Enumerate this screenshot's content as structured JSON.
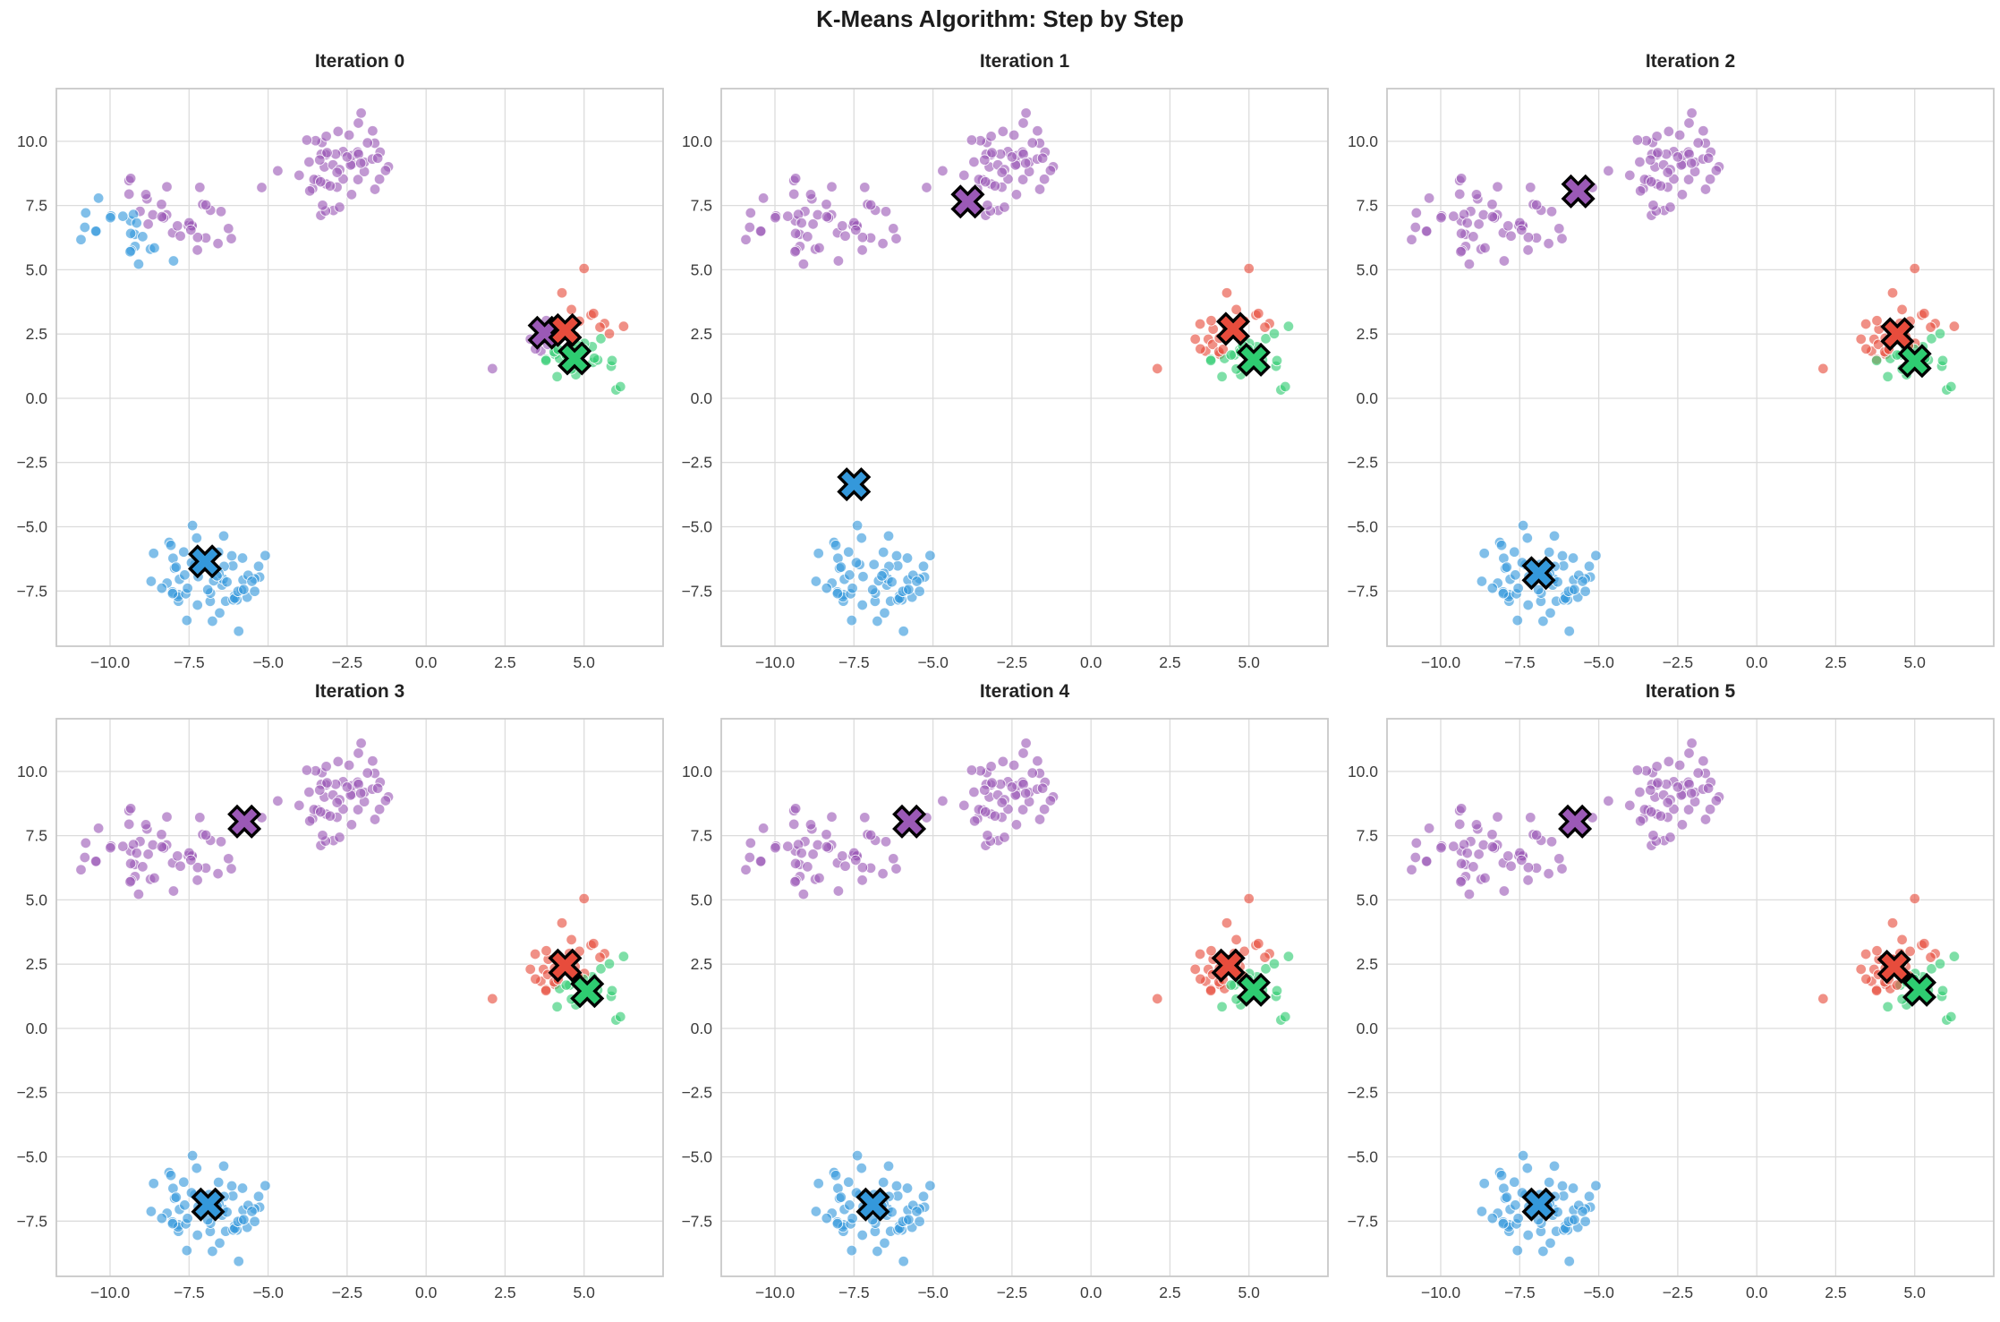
{
  "chart_data": {
    "type": "scatter",
    "suptitle": "K-Means Algorithm: Step by Step",
    "layout": {
      "rows": 2,
      "cols": 3,
      "grid": true,
      "legend": "none"
    },
    "xlim": [
      -11.7,
      7.5
    ],
    "ylim": [
      -9.65,
      12.05
    ],
    "xtick_values": [
      -10,
      -7.5,
      -5,
      -2.5,
      0,
      2.5,
      5
    ],
    "xtick_labels": [
      "−10.0",
      "−7.5",
      "−5.0",
      "−2.5",
      "0.0",
      "2.5",
      "5.0"
    ],
    "ytick_values": [
      10,
      7.5,
      5,
      2.5,
      0,
      -2.5,
      -5,
      -7.5
    ],
    "ytick_labels": [
      "10.0",
      "7.5",
      "5.0",
      "2.5",
      "0.0",
      "−2.5",
      "−5.0",
      "−7.5"
    ],
    "palette": [
      "#9b59b6",
      "#e74c3c",
      "#2ecc71",
      "#3498db"
    ],
    "class_names": [
      "purple",
      "red",
      "green",
      "blue"
    ],
    "style": {
      "background": "#ffffff",
      "grid_color": "#dcdcdc",
      "spine_color": "#c9c9c9",
      "tick_label_color": "#3c3c3c",
      "title_color": "#232323",
      "point_opacity": 0.62,
      "point_edge_color": "#ffffff",
      "marker_edge_color": "#000000"
    },
    "assignment_rule": "each point colored by nearest centroid of that iteration",
    "clusters": [
      {
        "name": "top-middle-blob",
        "n": 56,
        "cx": -2.55,
        "cy": 9.05,
        "sx": 0.85,
        "sy": 0.8,
        "seed": 11
      },
      {
        "name": "top-left-blob",
        "n": 52,
        "cx": -8.35,
        "cy": 7.0,
        "sx": 0.95,
        "sy": 0.75,
        "seed": 23
      },
      {
        "name": "bottom-left-blob",
        "n": 62,
        "cx": -6.9,
        "cy": -6.9,
        "sx": 0.85,
        "sy": 0.8,
        "seed": 37
      },
      {
        "name": "right-blob",
        "n": 44,
        "cx": 4.7,
        "cy": 1.9,
        "sx": 0.85,
        "sy": 0.7,
        "seed": 51
      }
    ],
    "extra_points": [
      [
        -5.2,
        8.2
      ],
      [
        -10.8,
        6.65
      ],
      [
        -10.45,
        6.5
      ],
      [
        2.1,
        1.15
      ],
      [
        5.0,
        5.05
      ],
      [
        4.3,
        4.1
      ],
      [
        4.6,
        3.45
      ],
      [
        5.3,
        3.3
      ],
      [
        6.25,
        2.8
      ],
      [
        6.15,
        0.45
      ],
      [
        3.3,
        2.3
      ]
    ],
    "iterations": [
      {
        "label": "Iteration 0",
        "centroids": [
          [
            3.75,
            2.55
          ],
          [
            4.4,
            2.65
          ],
          [
            4.7,
            1.55
          ],
          [
            -7.0,
            -6.35
          ]
        ]
      },
      {
        "label": "Iteration 1",
        "centroids": [
          [
            -3.9,
            7.65
          ],
          [
            4.5,
            2.7
          ],
          [
            5.15,
            1.5
          ],
          [
            -7.5,
            -3.35
          ]
        ]
      },
      {
        "label": "Iteration 2",
        "centroids": [
          [
            -5.65,
            8.05
          ],
          [
            4.45,
            2.5
          ],
          [
            5.0,
            1.45
          ],
          [
            -6.9,
            -6.8
          ]
        ]
      },
      {
        "label": "Iteration 3",
        "centroids": [
          [
            -5.75,
            8.05
          ],
          [
            4.4,
            2.45
          ],
          [
            5.1,
            1.45
          ],
          [
            -6.9,
            -6.85
          ]
        ]
      },
      {
        "label": "Iteration 4",
        "centroids": [
          [
            -5.75,
            8.05
          ],
          [
            4.35,
            2.45
          ],
          [
            5.15,
            1.5
          ],
          [
            -6.9,
            -6.85
          ]
        ]
      },
      {
        "label": "Iteration 5",
        "centroids": [
          [
            -5.75,
            8.05
          ],
          [
            4.35,
            2.4
          ],
          [
            5.15,
            1.5
          ],
          [
            -6.9,
            -6.85
          ]
        ]
      }
    ]
  }
}
